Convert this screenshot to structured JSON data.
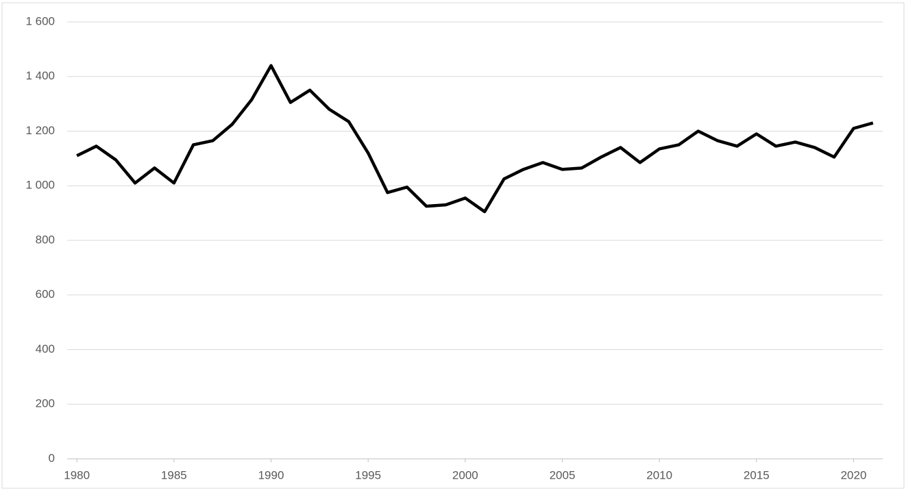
{
  "chart_data": {
    "type": "line",
    "x": [
      1980,
      1981,
      1982,
      1983,
      1984,
      1985,
      1986,
      1987,
      1988,
      1989,
      1990,
      1991,
      1992,
      1993,
      1994,
      1995,
      1996,
      1997,
      1998,
      1999,
      2000,
      2001,
      2002,
      2003,
      2004,
      2005,
      2006,
      2007,
      2008,
      2009,
      2010,
      2011,
      2012,
      2013,
      2014,
      2015,
      2016,
      2017,
      2018,
      2019,
      2020,
      2021
    ],
    "values": [
      1110,
      1145,
      1095,
      1010,
      1065,
      1010,
      1150,
      1165,
      1225,
      1315,
      1440,
      1305,
      1350,
      1280,
      1235,
      1120,
      975,
      995,
      925,
      930,
      955,
      905,
      1025,
      1060,
      1085,
      1060,
      1065,
      1105,
      1140,
      1085,
      1135,
      1150,
      1200,
      1165,
      1145,
      1190,
      1145,
      1160,
      1140,
      1105,
      1210,
      1230
    ],
    "color": "#000000",
    "xlim": [
      1979.5,
      2021.5
    ],
    "xticks": [
      1980,
      1985,
      1990,
      1995,
      2000,
      2005,
      2010,
      2015,
      2020
    ],
    "ylim": [
      0,
      1600
    ],
    "yticks": [
      0,
      200,
      400,
      600,
      800,
      {
        "value": 1000,
        "label": "1 000"
      },
      {
        "value": 1200,
        "label": "1 200"
      },
      {
        "value": 1400,
        "label": "1 400"
      },
      {
        "value": 1600,
        "label": "1 600"
      }
    ],
    "grid": true
  }
}
